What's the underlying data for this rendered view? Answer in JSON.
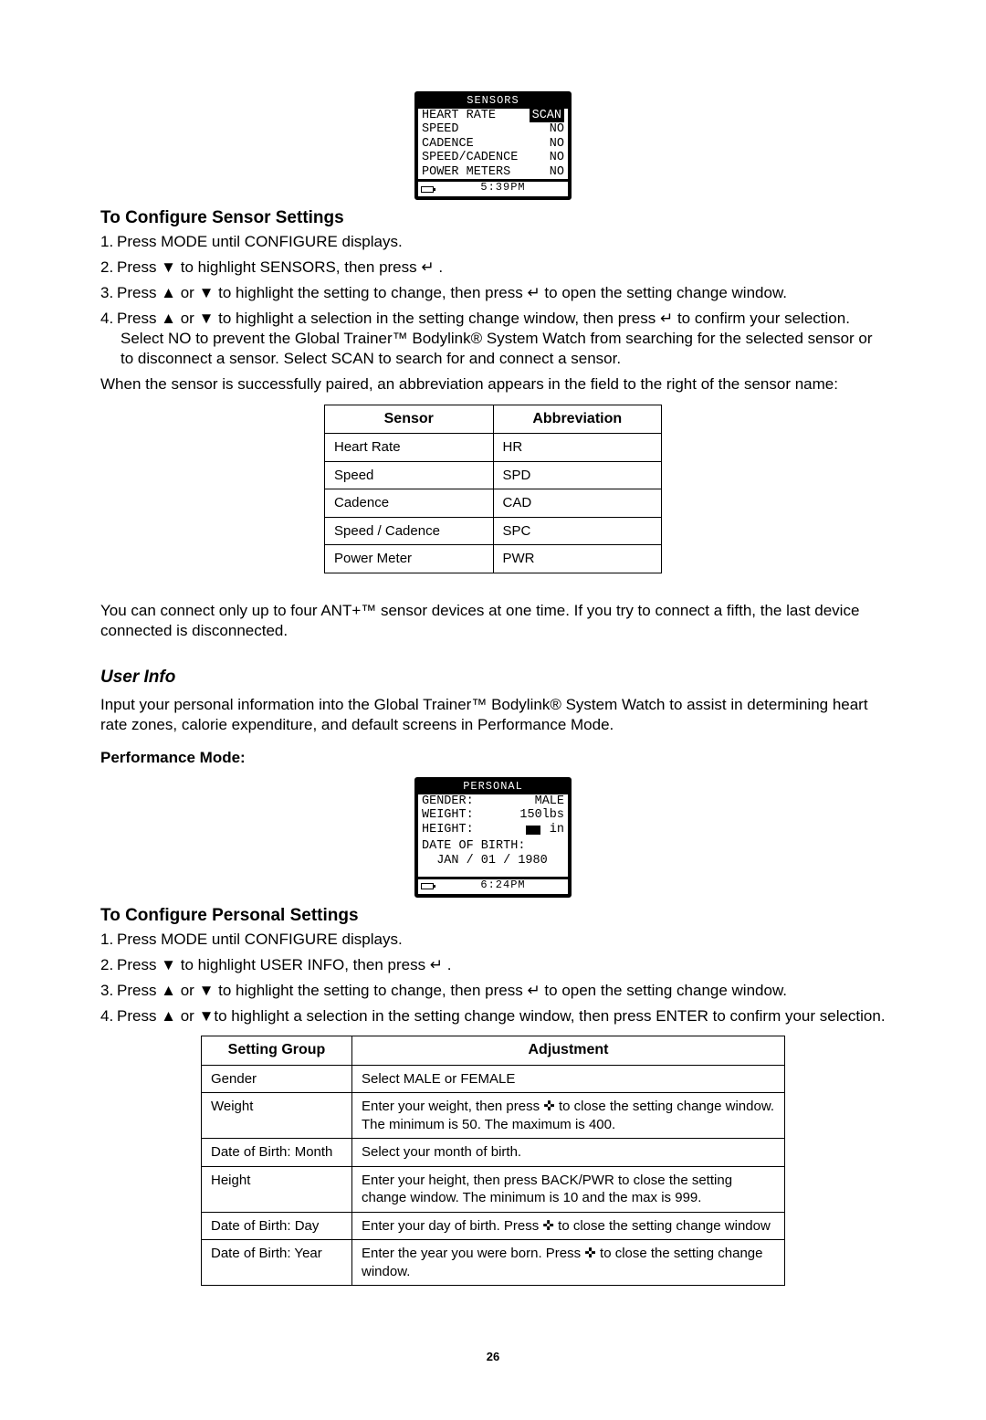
{
  "lcd_sensors": {
    "header": "SENSORS",
    "rows": [
      {
        "label": "HEART RATE",
        "value": "SCAN",
        "inverted": true
      },
      {
        "label": "SPEED",
        "value": "NO",
        "inverted": false
      },
      {
        "label": "CADENCE",
        "value": "NO",
        "inverted": false
      },
      {
        "label": "SPEED/CADENCE",
        "value": "NO",
        "inverted": false
      },
      {
        "label": "POWER METERS",
        "value": "NO",
        "inverted": false
      }
    ],
    "time": "5:39PM"
  },
  "section_sensor": {
    "heading": "To Configure Sensor Settings",
    "steps": [
      "Press MODE until CONFIGURE displays.",
      "Press ▼ to highlight SENSORS, then press ↵ .",
      "Press ▲ or ▼ to highlight the setting to change, then press ↵  to open the setting change window.",
      "Press ▲ or ▼ to highlight a selection in the setting change window, then press ↵  to confirm your selection. Select NO to prevent the Global Trainer™ Bodylink® System Watch from searching for the selected sensor or to disconnect a sensor. Select SCAN to search for and connect a sensor."
    ],
    "after_steps": "When the sensor is successfully paired, an abbreviation appears in the field to the right of the sensor name:"
  },
  "sensor_table": {
    "headers": [
      "Sensor",
      "Abbreviation"
    ],
    "rows": [
      [
        "Heart Rate",
        "HR"
      ],
      [
        "Speed",
        "SPD"
      ],
      [
        "Cadence",
        "CAD"
      ],
      [
        "Speed / Cadence",
        "SPC"
      ],
      [
        "Power Meter",
        "PWR"
      ]
    ]
  },
  "ant_note": "You can connect only up to four ANT+™ sensor devices at one time. If you try to connect a fifth, the last device connected is disconnected.",
  "userinfo": {
    "heading": "User Info",
    "intro": "Input your personal information into the Global Trainer™ Bodylink® System Watch to assist in determining heart rate zones, calorie expenditure, and default screens in Performance Mode.",
    "subheading": "Performance Mode:"
  },
  "lcd_personal": {
    "header": "PERSONAL",
    "rows": [
      {
        "label": "GENDER:",
        "value": "MALE"
      },
      {
        "label": "WEIGHT:",
        "value": "150lbs"
      },
      {
        "label": "HEIGHT:",
        "value": "in",
        "height_field": true
      },
      {
        "label": "DATE OF BIRTH:",
        "value": ""
      },
      {
        "label": "  JAN / 01 / 1980",
        "value": ""
      }
    ],
    "time": "6:24PM"
  },
  "section_personal": {
    "heading": "To Configure Personal Settings",
    "steps": [
      "Press MODE until CONFIGURE displays.",
      "Press ▼ to highlight USER INFO, then press ↵ .",
      "Press ▲ or ▼ to highlight the setting to change, then press ↵  to open the setting change window.",
      "Press ▲ or  ▼to highlight a selection in the setting change window, then press ENTER to confirm your selection."
    ]
  },
  "settings_table": {
    "headers": [
      "Setting Group",
      "Adjustment"
    ],
    "rows": [
      [
        "Gender",
        "Select MALE or FEMALE"
      ],
      [
        "Weight",
        "Enter your weight, then press ✜ to close the setting change window. The minimum is 50. The maximum is 400."
      ],
      [
        "Date of Birth: Month",
        "Select your month of birth."
      ],
      [
        "Height",
        "Enter your height, then press BACK/PWR to close the setting change window. The minimum is 10 and the max is 999."
      ],
      [
        "Date of Birth: Day",
        "Enter your day of birth. Press ✜ to close the setting change window"
      ],
      [
        "Date of Birth: Year",
        "Enter the year you were born. Press ✜  to close the setting change window."
      ]
    ]
  },
  "page_number": "26"
}
